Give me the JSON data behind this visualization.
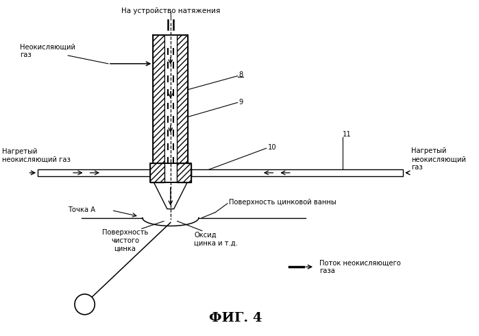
{
  "title": "ФИГ. 4",
  "background_color": "#ffffff",
  "fig_width": 6.99,
  "fig_height": 4.9,
  "labels": {
    "top": "На устройство натяжения",
    "non_oxidizing_gas_left_top": "Неокисляющий\nгаз",
    "heated_non_ox_left": "Нагретый\nнеокисляющий газ",
    "heated_non_ox_right": "Нагретый\nнеокисляющий\nгаз",
    "zinc_bath_surface": "Поверхность цинковой ванны",
    "point_a": "Точка А",
    "pure_zinc_surface": "Поверхность\nчистого\nцинка",
    "zinc_oxide": "Оксид\nцинка и т.д.",
    "non_ox_gas_flow": "Поток неокисляющего\nгаза",
    "num8": "8",
    "num9": "9",
    "num10": "10",
    "num11": "11"
  }
}
